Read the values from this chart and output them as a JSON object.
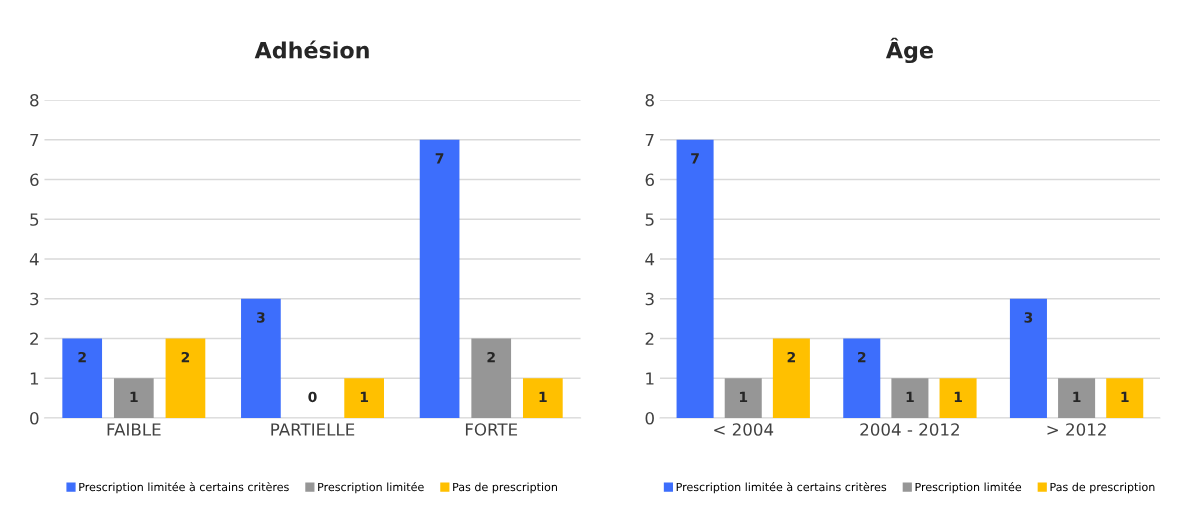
{
  "chart_data": [
    {
      "type": "bar",
      "title": "Adhésion",
      "categories": [
        "FAIBLE",
        "PARTIELLE",
        "FORTE"
      ],
      "series": [
        {
          "name": "Prescription limitée à certains critères",
          "color": "#3d6efc",
          "values": [
            2,
            3,
            7
          ]
        },
        {
          "name": "Prescription limitée",
          "color": "#969696",
          "values": [
            1,
            0,
            2
          ]
        },
        {
          "name": "Pas de prescription",
          "color": "#ffc000",
          "values": [
            2,
            1,
            1
          ]
        }
      ],
      "ylim": [
        0,
        8
      ],
      "yticks": [
        0,
        1,
        2,
        3,
        4,
        5,
        6,
        7,
        8
      ],
      "grid": "y",
      "legend": "bottom",
      "data_labels": true
    },
    {
      "type": "bar",
      "title": "Âge",
      "categories": [
        "< 2004",
        "2004 - 2012",
        "> 2012"
      ],
      "series": [
        {
          "name": "Prescription limitée à certains critères",
          "color": "#3d6efc",
          "values": [
            7,
            2,
            3
          ]
        },
        {
          "name": "Prescription limitée",
          "color": "#969696",
          "values": [
            1,
            1,
            1
          ]
        },
        {
          "name": "Pas de prescription",
          "color": "#ffc000",
          "values": [
            2,
            1,
            1
          ]
        }
      ],
      "ylim": [
        0,
        8
      ],
      "yticks": [
        0,
        1,
        2,
        3,
        4,
        5,
        6,
        7,
        8
      ],
      "grid": "y",
      "legend": "bottom",
      "data_labels": true
    }
  ]
}
